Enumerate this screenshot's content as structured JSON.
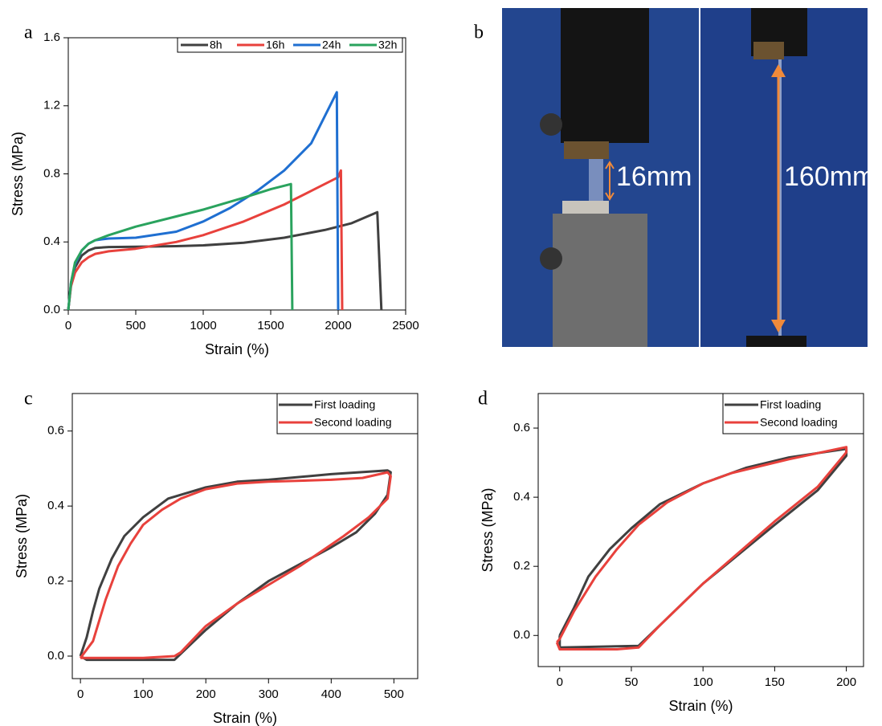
{
  "chart_data": [
    {
      "type": "line",
      "panel_label": "a",
      "x_label": "Strain (%)",
      "y_label": "Stress (MPa)",
      "xlim": [
        0,
        2500
      ],
      "xticks": [
        0,
        500,
        1000,
        1500,
        2000,
        2500
      ],
      "ylim": [
        0,
        1.6
      ],
      "yticks": [
        {
          "value": 0,
          "label": "0.0"
        },
        {
          "value": 0.4,
          "label": "0.4"
        },
        {
          "value": 0.8,
          "label": "0.8"
        },
        {
          "value": 1.2,
          "label": "1.2"
        },
        {
          "value": 1.6,
          "label": "1.6"
        }
      ],
      "legend": "top-right",
      "series": [
        {
          "name": "8h",
          "color": "#404040",
          "x": [
            0,
            20,
            50,
            100,
            150,
            200,
            300,
            500,
            800,
            1000,
            1300,
            1600,
            1900,
            2100,
            2290,
            2320
          ],
          "values": [
            0,
            0.15,
            0.25,
            0.32,
            0.35,
            0.365,
            0.37,
            0.372,
            0.375,
            0.38,
            0.395,
            0.425,
            0.47,
            0.51,
            0.575,
            0
          ]
        },
        {
          "name": "16h",
          "color": "#e8413c",
          "x": [
            0,
            20,
            50,
            100,
            150,
            200,
            300,
            500,
            800,
            1000,
            1300,
            1600,
            1800,
            2000,
            2020,
            2030
          ],
          "values": [
            0,
            0.14,
            0.22,
            0.28,
            0.31,
            0.33,
            0.345,
            0.36,
            0.4,
            0.44,
            0.52,
            0.62,
            0.7,
            0.78,
            0.82,
            0
          ]
        },
        {
          "name": "24h",
          "color": "#1f6fd1",
          "x": [
            0,
            20,
            50,
            100,
            150,
            200,
            300,
            500,
            800,
            1000,
            1200,
            1400,
            1600,
            1800,
            1990,
            2000
          ],
          "values": [
            0,
            0.16,
            0.27,
            0.35,
            0.39,
            0.41,
            0.42,
            0.425,
            0.46,
            0.52,
            0.6,
            0.7,
            0.82,
            0.98,
            1.28,
            0
          ]
        },
        {
          "name": "32h",
          "color": "#2aa35e",
          "x": [
            0,
            20,
            50,
            100,
            150,
            200,
            300,
            500,
            800,
            1000,
            1300,
            1500,
            1650,
            1660
          ],
          "values": [
            0,
            0.16,
            0.28,
            0.35,
            0.39,
            0.41,
            0.44,
            0.49,
            0.55,
            0.59,
            0.66,
            0.71,
            0.74,
            0
          ]
        }
      ]
    },
    {
      "type": "line",
      "panel_label": "c",
      "x_label": "Strain (%)",
      "y_label": "Stress (MPa)",
      "xlim": [
        -13,
        538
      ],
      "xticks": [
        0,
        100,
        200,
        300,
        400,
        500
      ],
      "ylim": [
        -0.06,
        0.7
      ],
      "yticks": [
        {
          "value": 0,
          "label": "0.0"
        },
        {
          "value": 0.2,
          "label": "0.2"
        },
        {
          "value": 0.4,
          "label": "0.4"
        },
        {
          "value": 0.6,
          "label": "0.6"
        }
      ],
      "legend": "top-right",
      "series": [
        {
          "name": "First loading",
          "color": "#404040",
          "x": [
            0,
            10,
            20,
            30,
            50,
            70,
            100,
            140,
            200,
            250,
            300,
            400,
            490,
            495,
            490,
            470,
            440,
            400,
            300,
            250,
            200,
            150,
            100,
            10,
            0
          ],
          "values": [
            0,
            0.05,
            0.12,
            0.18,
            0.26,
            0.32,
            0.37,
            0.42,
            0.45,
            0.465,
            0.47,
            0.485,
            0.495,
            0.49,
            0.43,
            0.38,
            0.33,
            0.29,
            0.2,
            0.14,
            0.07,
            -0.01,
            -0.01,
            -0.01,
            0
          ]
        },
        {
          "name": "Second loading",
          "color": "#e8413c",
          "x": [
            0,
            20,
            40,
            60,
            80,
            100,
            130,
            160,
            200,
            250,
            300,
            400,
            450,
            490,
            495,
            490,
            460,
            420,
            350,
            250,
            200,
            160,
            150,
            100,
            0
          ],
          "values": [
            -0.005,
            0.04,
            0.15,
            0.24,
            0.3,
            0.35,
            0.39,
            0.42,
            0.445,
            0.46,
            0.465,
            0.47,
            0.475,
            0.49,
            0.48,
            0.42,
            0.37,
            0.32,
            0.24,
            0.14,
            0.08,
            0.01,
            0,
            -0.005,
            -0.005
          ]
        }
      ]
    },
    {
      "type": "line",
      "panel_label": "d",
      "x_label": "Strain (%)",
      "y_label": "Stress (MPa)",
      "xlim": [
        -15,
        212
      ],
      "xticks": [
        0,
        50,
        100,
        150,
        200
      ],
      "ylim": [
        -0.09,
        0.7
      ],
      "yticks": [
        {
          "value": 0,
          "label": "0.0"
        },
        {
          "value": 0.2,
          "label": "0.2"
        },
        {
          "value": 0.4,
          "label": "0.4"
        },
        {
          "value": 0.6,
          "label": "0.6"
        }
      ],
      "legend": "top-right",
      "series": [
        {
          "name": "First loading",
          "color": "#404040",
          "x": [
            0,
            10,
            20,
            35,
            50,
            70,
            100,
            130,
            160,
            200,
            200,
            180,
            150,
            100,
            70,
            55,
            0,
            0
          ],
          "values": [
            0,
            0.08,
            0.17,
            0.25,
            0.31,
            0.38,
            0.44,
            0.485,
            0.515,
            0.54,
            0.52,
            0.42,
            0.32,
            0.15,
            0.03,
            -0.03,
            -0.035,
            0
          ]
        },
        {
          "name": "Second loading",
          "color": "#e8413c",
          "x": [
            -2,
            0,
            10,
            25,
            40,
            55,
            75,
            100,
            120,
            160,
            200,
            200,
            180,
            150,
            100,
            70,
            55,
            40,
            0,
            -2
          ],
          "values": [
            -0.02,
            -0.01,
            0.07,
            0.17,
            0.25,
            0.32,
            0.385,
            0.44,
            0.47,
            0.51,
            0.545,
            0.53,
            0.43,
            0.33,
            0.15,
            0.03,
            -0.035,
            -0.04,
            -0.04,
            -0.02
          ]
        }
      ]
    }
  ],
  "photo": {
    "panel_label": "b",
    "labels": [
      "16mm",
      "160mm"
    ]
  }
}
